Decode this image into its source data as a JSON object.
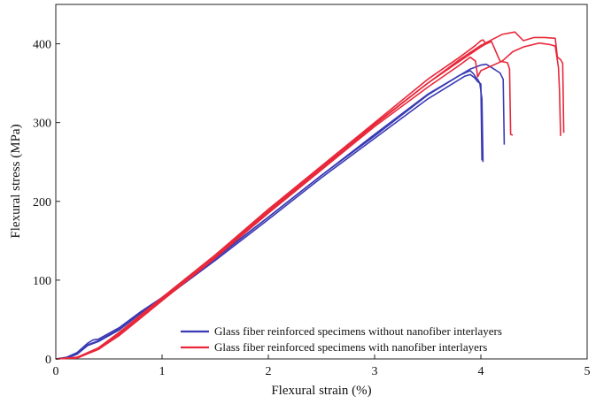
{
  "chart_data": {
    "type": "line",
    "xlabel": "Flexural strain (%)",
    "ylabel": "Flexural stress (MPa)",
    "xlim": [
      0,
      5
    ],
    "ylim": [
      0,
      450
    ],
    "xticks": [
      "0",
      "1",
      "2",
      "3",
      "4",
      "5"
    ],
    "yticks": [
      "0",
      "100",
      "200",
      "300",
      "400"
    ],
    "xtick_values": [
      0,
      1,
      2,
      3,
      4,
      5
    ],
    "ytick_values": [
      0,
      100,
      200,
      300,
      400
    ],
    "grid": false,
    "legend_position": "bottom-right",
    "colors": {
      "without": "#3a3ab4",
      "with": "#e8283a"
    },
    "legend": [
      {
        "label": "Glass fiber reinforced specimens without nanofiber interlayers",
        "color": "#3a3ab4"
      },
      {
        "label": "Glass fiber reinforced specimens with nanofiber interlayers",
        "color": "#e8283a"
      }
    ],
    "series": [
      {
        "group": "without",
        "color": "#3a3ab4",
        "x": [
          0,
          0.1,
          0.2,
          0.3,
          0.35,
          0.4,
          0.6,
          0.8,
          1.0,
          1.5,
          2.0,
          2.5,
          3.0,
          3.5,
          3.8,
          3.9,
          3.93,
          3.96,
          3.97,
          3.99,
          4.01,
          4.02
        ],
        "y": [
          0,
          2,
          8,
          20,
          24,
          25,
          40,
          60,
          78,
          128,
          180,
          233,
          283,
          335,
          360,
          366,
          362,
          356,
          355,
          350,
          330,
          250
        ]
      },
      {
        "group": "without",
        "color": "#3a3ab4",
        "x": [
          0,
          0.1,
          0.2,
          0.3,
          0.4,
          0.6,
          0.8,
          1.0,
          1.5,
          2.0,
          2.5,
          3.0,
          3.5,
          3.85,
          3.9,
          3.94,
          3.97,
          4.0,
          4.01
        ],
        "y": [
          0,
          1,
          6,
          17,
          22,
          37,
          58,
          75,
          125,
          177,
          230,
          280,
          330,
          359,
          361,
          357,
          352,
          349,
          252
        ]
      },
      {
        "group": "without",
        "color": "#3a3ab4",
        "x": [
          0,
          0.1,
          0.2,
          0.3,
          0.4,
          0.6,
          0.8,
          1.0,
          1.5,
          2.0,
          2.5,
          3.0,
          3.5,
          3.9,
          4.0,
          4.05,
          4.1,
          4.18,
          4.21,
          4.22
        ],
        "y": [
          0,
          1,
          7,
          18,
          23,
          38,
          59,
          77,
          127,
          180,
          233,
          285,
          336,
          368,
          373,
          374,
          370,
          363,
          355,
          272
        ]
      },
      {
        "group": "with",
        "color": "#e8283a",
        "x": [
          0,
          0.2,
          0.4,
          0.6,
          0.8,
          1.0,
          1.5,
          2.0,
          2.5,
          3.0,
          3.5,
          3.8,
          3.9,
          3.95,
          4.0,
          4.02,
          4.05
        ],
        "y": [
          0,
          2,
          14,
          34,
          56,
          78,
          132,
          190,
          245,
          300,
          355,
          383,
          393,
          398,
          404,
          405,
          400
        ]
      },
      {
        "group": "with",
        "color": "#e8283a",
        "x": [
          0,
          0.2,
          0.4,
          0.6,
          0.8,
          1.0,
          1.5,
          2.0,
          2.5,
          3.0,
          3.5,
          3.8,
          4.0,
          4.05,
          4.1,
          4.18,
          4.25,
          4.27,
          4.28,
          4.3
        ],
        "y": [
          0,
          2,
          13,
          32,
          54,
          76,
          130,
          188,
          243,
          298,
          350,
          378,
          396,
          400,
          403,
          378,
          376,
          368,
          285,
          284
        ]
      },
      {
        "group": "with",
        "color": "#e8283a",
        "x": [
          0,
          0.2,
          0.4,
          0.6,
          0.8,
          1.0,
          1.5,
          2.0,
          2.5,
          3.0,
          3.5,
          3.8,
          3.9,
          3.95,
          3.97,
          4.0,
          4.2,
          4.3,
          4.4,
          4.55,
          4.65,
          4.7,
          4.73,
          4.74,
          4.75
        ],
        "y": [
          0,
          1,
          12,
          30,
          52,
          74,
          128,
          185,
          240,
          295,
          345,
          373,
          383,
          378,
          358,
          366,
          378,
          390,
          396,
          401,
          399,
          397,
          370,
          340,
          283
        ]
      },
      {
        "group": "with",
        "color": "#e8283a",
        "x": [
          0,
          0.2,
          0.4,
          0.6,
          0.8,
          1.0,
          1.5,
          2.0,
          2.5,
          3.0,
          3.5,
          3.8,
          4.0,
          4.2,
          4.32,
          4.4,
          4.5,
          4.6,
          4.7,
          4.72,
          4.75,
          4.77,
          4.78
        ],
        "y": [
          0,
          2,
          12,
          31,
          53,
          75,
          129,
          187,
          242,
          297,
          350,
          380,
          398,
          412,
          415,
          404,
          408,
          408,
          407,
          383,
          380,
          375,
          287
        ]
      }
    ]
  }
}
